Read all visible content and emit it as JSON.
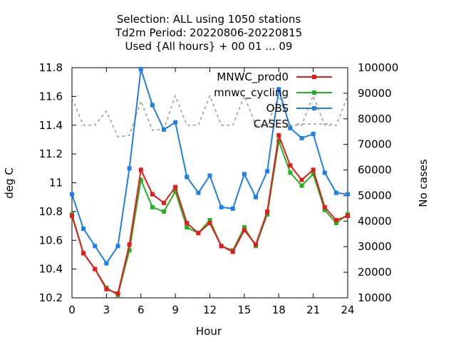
{
  "title_lines": [
    "Selection: ALL using  1050 stations",
    "Td2m   Period: 20220806-20220815",
    "Used {All hours} + 00 01 ... 09"
  ],
  "chart_data": {
    "type": "line",
    "xlabel": "Hour",
    "ylabel": "deg C",
    "y2label": "No cases",
    "xlim": [
      0,
      24
    ],
    "ylim": [
      10.2,
      11.8
    ],
    "y2lim": [
      10000,
      100000
    ],
    "x_ticks": [
      "0",
      "3",
      "6",
      "9",
      "12",
      "15",
      "18",
      "21",
      "24"
    ],
    "y_ticks": [
      "10.2",
      "10.4",
      "10.6",
      "10.8",
      "11",
      "11.2",
      "11.4",
      "11.6",
      "11.8"
    ],
    "y2_ticks": [
      "10000",
      "20000",
      "30000",
      "40000",
      "50000",
      "60000",
      "70000",
      "80000",
      "90000",
      "100000"
    ],
    "legend_position": "top-right",
    "x": [
      0,
      1,
      2,
      3,
      4,
      5,
      6,
      7,
      8,
      9,
      10,
      11,
      12,
      13,
      14,
      15,
      16,
      17,
      18,
      19,
      20,
      21,
      22,
      23,
      24
    ],
    "series": [
      {
        "name": "MNWC_prod0",
        "color": "#e41a1c",
        "axis": "left",
        "style": "solid-markers",
        "values": [
          10.77,
          10.51,
          10.4,
          10.26,
          10.23,
          10.57,
          11.09,
          10.92,
          10.86,
          10.97,
          10.72,
          10.65,
          10.72,
          10.56,
          10.52,
          10.67,
          10.57,
          10.8,
          11.33,
          11.12,
          11.02,
          11.09,
          10.83,
          10.74,
          10.77
        ]
      },
      {
        "name": "mnwc_cycling",
        "color": "#22b222",
        "axis": "left",
        "style": "solid-markers",
        "values": [
          10.78,
          10.51,
          10.4,
          10.27,
          10.22,
          10.53,
          11.02,
          10.83,
          10.8,
          10.94,
          10.69,
          10.65,
          10.74,
          10.56,
          10.53,
          10.69,
          10.56,
          10.78,
          11.29,
          11.07,
          10.98,
          11.06,
          10.81,
          10.72,
          10.78
        ]
      },
      {
        "name": "OBS",
        "color": "#1e7fe6",
        "axis": "left",
        "style": "solid-markers",
        "values": [
          10.92,
          10.68,
          10.56,
          10.44,
          10.56,
          11.1,
          11.79,
          11.54,
          11.37,
          11.42,
          11.04,
          10.93,
          11.05,
          10.83,
          10.82,
          11.06,
          10.9,
          11.08,
          11.65,
          11.38,
          11.31,
          11.34,
          11.07,
          10.93,
          10.92
        ]
      },
      {
        "name": "CASES",
        "color": "#999999",
        "axis": "right",
        "style": "dashed",
        "values": [
          88000,
          77500,
          77500,
          83000,
          73000,
          73500,
          87000,
          75500,
          76000,
          89000,
          77500,
          77500,
          89000,
          77500,
          77500,
          89000,
          77500,
          77500,
          89000,
          77500,
          77500,
          89000,
          77500,
          77500,
          89000
        ]
      }
    ]
  }
}
